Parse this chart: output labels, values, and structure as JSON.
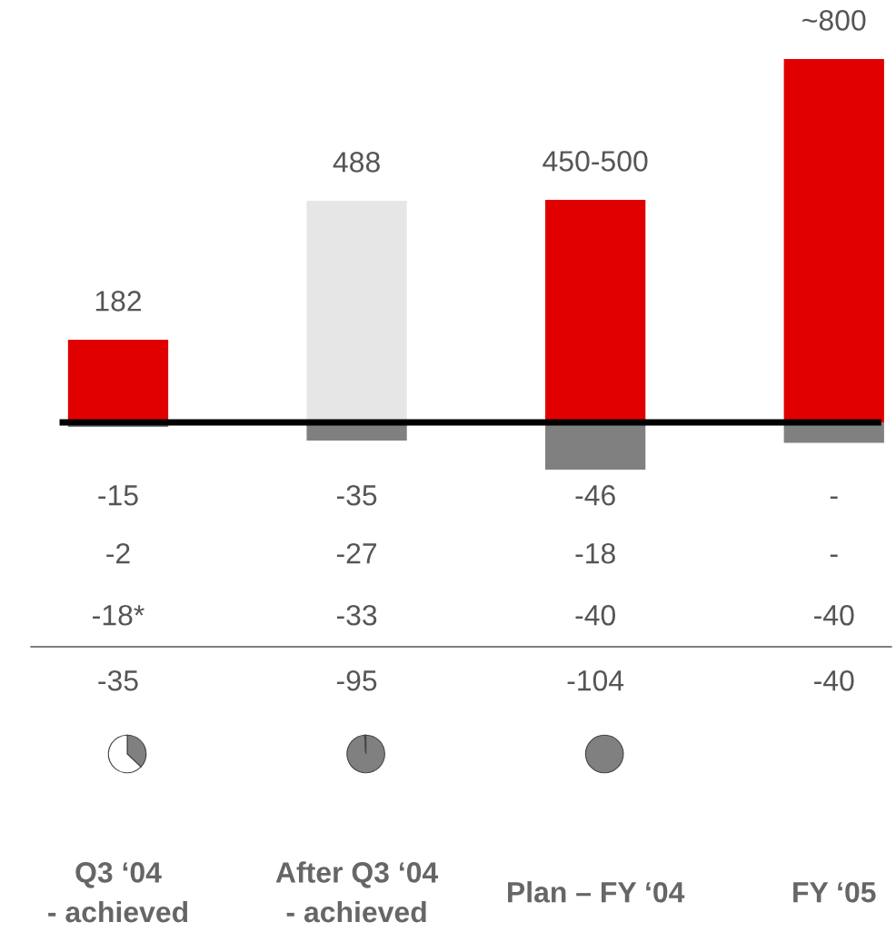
{
  "chart_data": [
    {
      "type": "bar",
      "categories": [
        "Q3 ‘04\n- achieved",
        "After Q3 ‘04\n- achieved",
        "Plan – FY ‘04",
        "FY ‘05"
      ],
      "series": [
        {
          "colors": [
            "#808080",
            "#808080",
            "#808080",
            "#808080"
          ],
          "values": [
            -10,
            -40,
            -104,
            -45
          ],
          "value_labels": [
            null,
            null,
            null,
            null
          ]
        },
        {
          "colors": [
            "#e00000",
            "#e6e6e6",
            "#e00000",
            "#e00000"
          ],
          "values": [
            182,
            488,
            490,
            800
          ],
          "value_labels": [
            "182",
            "488",
            "450-500",
            "~800"
          ]
        }
      ],
      "stacked": true,
      "ref_lines": [
        {
          "axis": "y",
          "value": 0,
          "color": "#000000"
        }
      ],
      "annotations": [
        "-15",
        "-2",
        "-18*",
        "-35",
        "-35",
        "-27",
        "-33",
        "-95",
        "-46",
        "-18",
        "-40",
        "-104",
        "-",
        "-",
        "-40",
        "-40"
      ]
    },
    {
      "type": "pie",
      "categories": [
        null,
        null
      ],
      "values": [
        37,
        63
      ],
      "colors": [
        "#808080",
        "#ffffff"
      ]
    },
    {
      "type": "pie",
      "categories": [
        null,
        null
      ],
      "values": [
        99,
        1
      ],
      "colors": [
        "#808080",
        "#ffffff"
      ]
    },
    {
      "type": "pie",
      "categories": [
        null
      ],
      "values": [
        100
      ],
      "colors": [
        "#808080"
      ]
    }
  ]
}
